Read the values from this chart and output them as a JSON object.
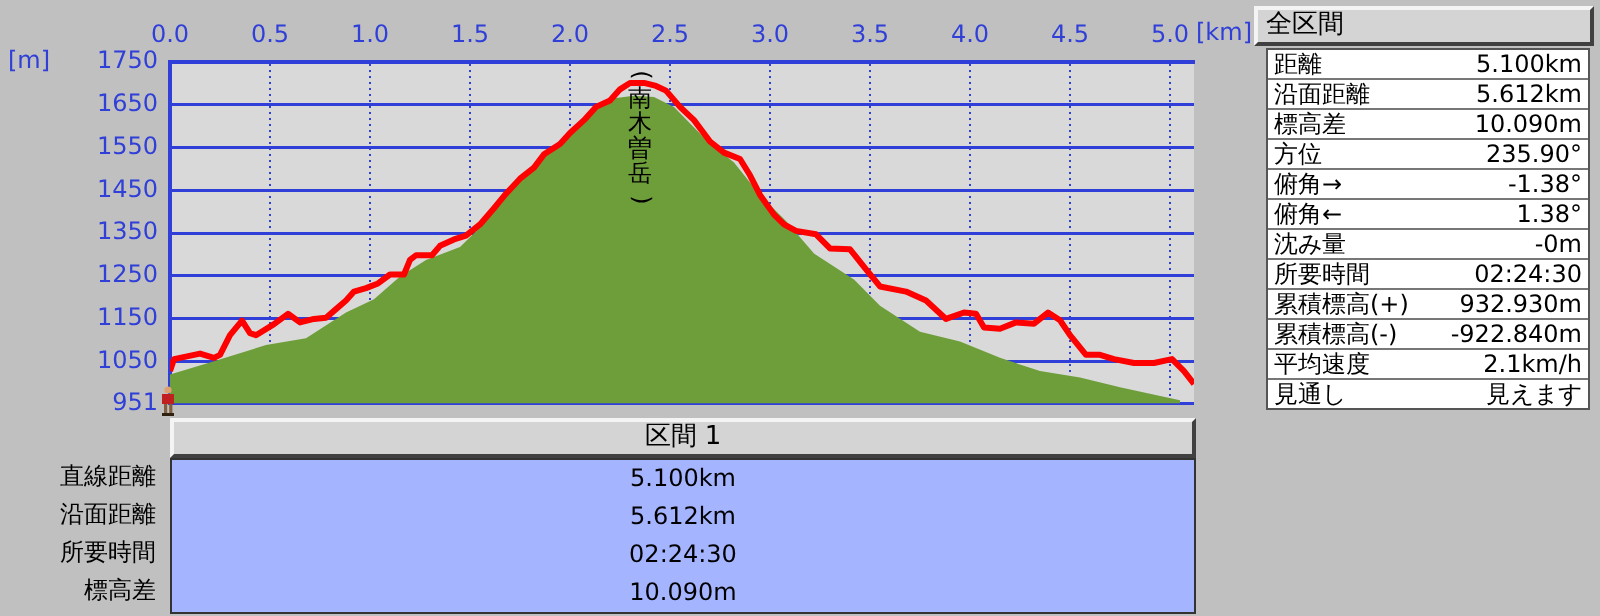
{
  "chart_data": [
    {
      "type": "area",
      "xlabel": "[km]",
      "ylabel": "[m]",
      "xlim": [
        0,
        5.12
      ],
      "xticks": [
        {
          "value": 0,
          "label": "0.0"
        },
        {
          "value": 0.5,
          "label": "0.5"
        },
        {
          "value": 1,
          "label": "1.0"
        },
        {
          "value": 1.5,
          "label": "1.5"
        },
        {
          "value": 2,
          "label": "2.0"
        },
        {
          "value": 2.5,
          "label": "2.5"
        },
        {
          "value": 3,
          "label": "3.0"
        },
        {
          "value": 3.5,
          "label": "3.5"
        },
        {
          "value": 4,
          "label": "4.0"
        },
        {
          "value": 4.5,
          "label": "4.5"
        },
        {
          "value": 5,
          "label": "5.0"
        }
      ],
      "ylim": [
        951,
        1750
      ],
      "yticks": [
        951,
        1050,
        1150,
        1250,
        1350,
        1450,
        1550,
        1650,
        1750
      ],
      "grid": true,
      "legend": false,
      "marker": "none",
      "annotations": [
        {
          "text": "(南木曽岳)",
          "x": 2.35,
          "y": 1701
        }
      ],
      "series": [
        {
          "type": "area",
          "color": "#6e9e3a",
          "x": [
            0,
            0.22,
            0.48,
            0.68,
            0.88,
            1.02,
            1.15,
            1.28,
            1.45,
            1.55,
            1.68,
            1.82,
            1.95,
            2.08,
            2.22,
            2.32,
            2.42,
            2.52,
            2.68,
            2.82,
            2.95,
            3.08,
            3.22,
            3.42,
            3.55,
            3.75,
            3.95,
            4.15,
            4.35,
            4.55,
            4.75,
            4.98,
            5.05
          ],
          "values": [
            1019,
            1050,
            1088,
            1104,
            1164,
            1195,
            1248,
            1287,
            1317,
            1363,
            1439,
            1507,
            1561,
            1622,
            1665,
            1671,
            1668,
            1645,
            1568,
            1515,
            1439,
            1378,
            1302,
            1241,
            1180,
            1119,
            1096,
            1058,
            1027,
            1012,
            989,
            966,
            959
          ]
        },
        {
          "type": "line",
          "color": "#ff0000",
          "x": [
            0,
            0.02,
            0.15,
            0.22,
            0.25,
            0.3,
            0.36,
            0.4,
            0.43,
            0.52,
            0.59,
            0.65,
            0.72,
            0.78,
            0.83,
            0.88,
            0.92,
            0.98,
            1.04,
            1.1,
            1.17,
            1.2,
            1.23,
            1.31,
            1.35,
            1.42,
            1.48,
            1.55,
            1.62,
            1.68,
            1.75,
            1.82,
            1.87,
            1.95,
            2,
            2.07,
            2.13,
            2.2,
            2.25,
            2.3,
            2.37,
            2.43,
            2.48,
            2.55,
            2.62,
            2.7,
            2.77,
            2.85,
            2.9,
            2.95,
            3.02,
            3.07,
            3.13,
            3.23,
            3.3,
            3.4,
            3.47,
            3.55,
            3.68,
            3.78,
            3.88,
            3.97,
            4.03,
            4.07,
            4.15,
            4.23,
            4.32,
            4.39,
            4.45,
            4.5,
            4.58,
            4.65,
            4.72,
            4.82,
            4.92,
            5.01,
            5.07,
            5.12
          ],
          "values": [
            1027,
            1055,
            1068,
            1058,
            1065,
            1111,
            1145,
            1116,
            1111,
            1137,
            1161,
            1141,
            1149,
            1152,
            1172,
            1192,
            1213,
            1221,
            1232,
            1253,
            1253,
            1287,
            1298,
            1298,
            1320,
            1335,
            1344,
            1370,
            1408,
            1442,
            1477,
            1503,
            1534,
            1558,
            1584,
            1614,
            1645,
            1660,
            1686,
            1701,
            1701,
            1694,
            1683,
            1645,
            1614,
            1564,
            1538,
            1523,
            1485,
            1439,
            1393,
            1370,
            1355,
            1347,
            1314,
            1312,
            1271,
            1225,
            1213,
            1192,
            1149,
            1164,
            1161,
            1129,
            1126,
            1141,
            1138,
            1164,
            1146,
            1111,
            1065,
            1065,
            1055,
            1046,
            1046,
            1055,
            1027,
            997
          ]
        }
      ]
    },
    {
      "type": "other",
      "title": "全区間",
      "annotations": [
        "距離",
        "5.100km",
        "沿面距離",
        "5.612km",
        "標高差",
        "10.090m",
        "方位",
        "235.90°",
        "俯角→",
        "-1.38°",
        "俯角←",
        "1.38°",
        "沈み量",
        "-0m",
        "所要時間",
        "02:24:30",
        "累積標高(+)",
        "932.930m",
        "累積標高(-)",
        "-922.840m",
        "平均速度",
        "2.1km/h",
        "見通し",
        "見えます"
      ]
    },
    {
      "type": "other",
      "title": "区間 1",
      "annotations": [
        "直線距離",
        "5.100km",
        "沿面距離",
        "5.612km",
        "所要時間",
        "02:24:30",
        "標高差",
        "10.090m"
      ]
    }
  ]
}
